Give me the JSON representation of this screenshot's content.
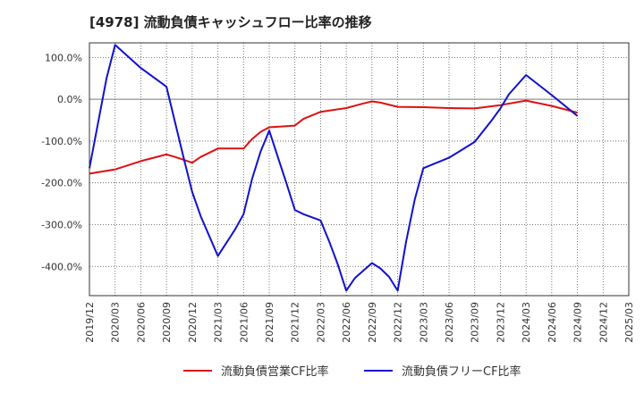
{
  "chart_data": {
    "type": "line",
    "title": "[4978]  流動負債キャッシュフロー比率の推移",
    "xlabel": "",
    "ylabel": "",
    "ylim": [
      -470,
      135
    ],
    "y_ticks": [
      100,
      0,
      -100,
      -200,
      -300,
      -400
    ],
    "y_tick_labels": [
      "100.0%",
      "0.0%",
      "-100.0%",
      "-200.0%",
      "-300.0%",
      "-400.0%"
    ],
    "x_tick_labels": [
      "2019/12",
      "2020/03",
      "2020/06",
      "2020/09",
      "2020/12",
      "2021/03",
      "2021/06",
      "2021/09",
      "2021/12",
      "2022/03",
      "2022/06",
      "2022/09",
      "2022/12",
      "2023/03",
      "2023/06",
      "2023/09",
      "2023/12",
      "2024/03",
      "2024/06",
      "2024/09",
      "2024/12",
      "2025/03"
    ],
    "grid": true,
    "legend_position": "bottom",
    "series": [
      {
        "name": "流動負債営業CF比率",
        "color": "#dd1111",
        "x": [
          "2019/12",
          "2020/03",
          "2020/06",
          "2020/09",
          "2020/10",
          "2020/12",
          "2021/01",
          "2021/03",
          "2021/06",
          "2021/07",
          "2021/08",
          "2021/09",
          "2021/12",
          "2022/01",
          "2022/03",
          "2022/06",
          "2022/08",
          "2022/09",
          "2022/10",
          "2022/12",
          "2023/03",
          "2023/06",
          "2023/09",
          "2023/12",
          "2024/03",
          "2024/06",
          "2024/09"
        ],
        "values": [
          -178,
          -168,
          -148,
          -132,
          -138,
          -152,
          -138,
          -118,
          -118,
          -95,
          -78,
          -67,
          -63,
          -47,
          -30,
          -21,
          -10,
          -5,
          -8,
          -18,
          -19,
          -21,
          -22,
          -14,
          -3,
          -16,
          -32
        ]
      },
      {
        "name": "流動負債フリーCF比率",
        "color": "#1111cc",
        "x": [
          "2019/12",
          "2020/02",
          "2020/03",
          "2020/06",
          "2020/09",
          "2020/11",
          "2020/12",
          "2021/01",
          "2021/03",
          "2021/05",
          "2021/06",
          "2021/07",
          "2021/08",
          "2021/09",
          "2021/10",
          "2021/11",
          "2021/12",
          "2022/01",
          "2022/03",
          "2022/04",
          "2022/05",
          "2022/06",
          "2022/07",
          "2022/09",
          "2022/10",
          "2022/11",
          "2022/12",
          "2023/01",
          "2023/02",
          "2023/03",
          "2023/06",
          "2023/09",
          "2023/11",
          "2023/12",
          "2024/01",
          "2024/03",
          "2024/06",
          "2024/09"
        ],
        "values": [
          -165,
          50,
          130,
          75,
          30,
          -140,
          -222,
          -280,
          -375,
          -312,
          -275,
          -190,
          -125,
          -75,
          -138,
          -200,
          -265,
          -275,
          -290,
          -340,
          -395,
          -458,
          -428,
          -392,
          -405,
          -425,
          -458,
          -340,
          -240,
          -165,
          -140,
          -102,
          -50,
          -22,
          12,
          58,
          10,
          -40
        ]
      }
    ]
  }
}
